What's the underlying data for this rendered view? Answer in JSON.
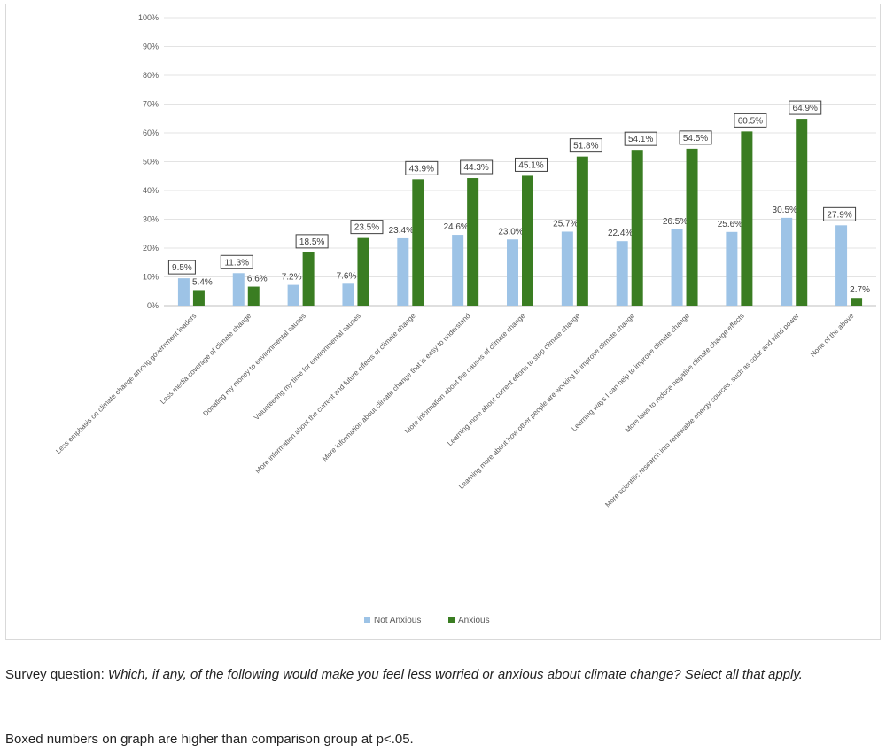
{
  "chart_data": {
    "type": "bar",
    "title": "",
    "xlabel": "",
    "ylabel": "",
    "ylim": [
      0,
      100
    ],
    "y_ticks": [
      "0%",
      "10%",
      "20%",
      "30%",
      "40%",
      "50%",
      "60%",
      "70%",
      "80%",
      "90%",
      "100%"
    ],
    "grid": "horizontal",
    "legend_position": "bottom",
    "categories": [
      "Less emphasis on climate change among government leaders",
      "Less media coverage of climate change",
      "Donating my money to environmental causes",
      "Volunteering my time for environmental causes",
      "More information about the current and future effects of climate change",
      "More information about climate change that is easy to understand",
      "More information about the causes of climate change",
      "Learning more about current efforts to stop climate change",
      "Learning more about how other people are working to improve climate change",
      "Learning ways I can help to improve climate change",
      "More laws to reduce negative climate change effects",
      "More scientific research into renewable energy sources, such as solar and wind power",
      "None of the above"
    ],
    "series": [
      {
        "name": "Not Anxious",
        "color": "#9dc3e6",
        "values": [
          9.5,
          11.3,
          7.2,
          7.6,
          23.4,
          24.6,
          23.0,
          25.7,
          22.4,
          26.5,
          25.6,
          30.5,
          27.9
        ],
        "labels": [
          "9.5%",
          "11.3%",
          "7.2%",
          "7.6%",
          "23.4%",
          "24.6%",
          "23.0%",
          "25.7%",
          "22.4%",
          "26.5%",
          "25.6%",
          "30.5%",
          "27.9%"
        ],
        "boxed": [
          true,
          true,
          false,
          false,
          false,
          false,
          false,
          false,
          false,
          false,
          false,
          false,
          true
        ]
      },
      {
        "name": "Anxious",
        "color": "#3a7d22",
        "values": [
          5.4,
          6.6,
          18.5,
          23.5,
          43.9,
          44.3,
          45.1,
          51.8,
          54.1,
          54.5,
          60.5,
          64.9,
          2.7
        ],
        "labels": [
          "5.4%",
          "6.6%",
          "18.5%",
          "23.5%",
          "43.9%",
          "44.3%",
          "45.1%",
          "51.8%",
          "54.1%",
          "54.5%",
          "60.5%",
          "64.9%",
          "2.7%"
        ],
        "boxed": [
          false,
          false,
          true,
          true,
          true,
          true,
          true,
          true,
          true,
          true,
          true,
          true,
          false
        ]
      }
    ]
  },
  "caption": {
    "question_prefix": "Survey question: ",
    "question_text": "Which, if any, of the following would make you feel less worried or anxious about climate change? Select all that apply.",
    "note": "Boxed numbers on graph are higher than comparison group at p<.05."
  }
}
